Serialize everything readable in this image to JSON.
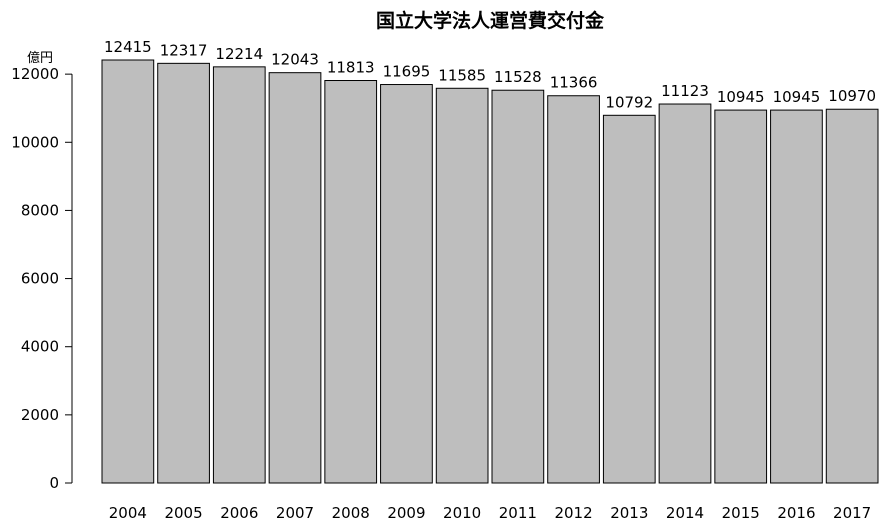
{
  "chart_data": {
    "type": "bar",
    "title": "国立大学法人運営費交付金",
    "y_unit": "億円",
    "categories": [
      "2004",
      "2005",
      "2006",
      "2007",
      "2008",
      "2009",
      "2010",
      "2011",
      "2012",
      "2013",
      "2014",
      "2015",
      "2016",
      "2017"
    ],
    "values": [
      12415,
      12317,
      12214,
      12043,
      11813,
      11695,
      11585,
      11528,
      11366,
      10792,
      11123,
      10945,
      10945,
      10970
    ],
    "y_ticks": [
      0,
      2000,
      4000,
      6000,
      8000,
      10000,
      12000
    ],
    "ylim": [
      0,
      12415
    ],
    "bar_color": "#bebebe",
    "bar_edge_color": "#000000",
    "grid": false,
    "legend": "none"
  }
}
